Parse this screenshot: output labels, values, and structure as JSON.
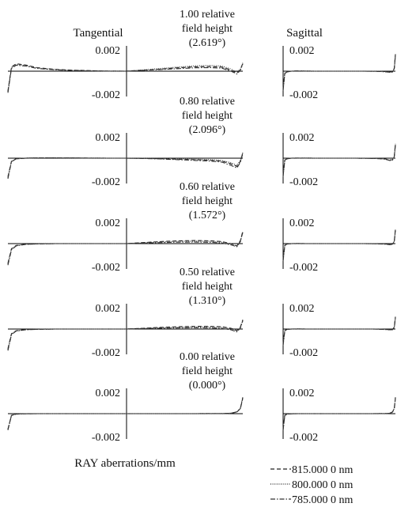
{
  "chart_data": {
    "type": "line",
    "column_headers": {
      "tangential": "Tangential",
      "sagittal": "Sagittal"
    },
    "xlabel": "RAY aberrations/mm",
    "ylim": [
      -0.002,
      0.002
    ],
    "series_legend": [
      {
        "name": "815.000 0 nm",
        "style": "dashed"
      },
      {
        "name": "800.000 0 nm",
        "style": "dotted"
      },
      {
        "name": "785.000 0 nm",
        "style": "dashdot"
      }
    ],
    "fields": [
      {
        "title": [
          "1.00 relative",
          "field height",
          "(2.619°)"
        ],
        "y_ticks": [
          "0.002",
          "-0.002"
        ],
        "x": [
          -1.0,
          -0.97,
          -0.93,
          -0.85,
          -0.75,
          -0.6,
          -0.45,
          -0.3,
          -0.15,
          0.0,
          0.15,
          0.3,
          0.45,
          0.6,
          0.72,
          0.82,
          0.9,
          0.95,
          0.98,
          1.0
        ],
        "tangential": [
          [
            -0.00195,
            0.0004,
            0.00072,
            0.0006,
            0.00035,
            0.00018,
            0.0001,
            5e-05,
            1e-05,
            0.0,
            0.0001,
            0.0002,
            0.00033,
            0.00043,
            0.00045,
            0.0004,
            0.0001,
            -0.00018,
            0.00015,
            0.00075
          ],
          [
            -0.002,
            0.00035,
            0.00065,
            0.00055,
            0.0003,
            0.00015,
            8e-05,
            4e-05,
            1e-05,
            0.0,
            0.00012,
            0.00026,
            0.0004,
            0.00052,
            0.00055,
            0.0005,
            0.0002,
            -0.0001,
            0.0002,
            0.0008
          ],
          [
            -0.0021,
            0.00028,
            0.00058,
            0.0005,
            0.00026,
            0.00013,
            7e-05,
            3e-05,
            1e-05,
            0.0,
            8e-05,
            0.00016,
            0.00025,
            0.00033,
            0.00035,
            0.0003,
            0.0,
            -0.00028,
            0.0001,
            0.0007
          ]
        ],
        "sagittal": [
          [
            -0.0017,
            -0.0002,
            -5e-05,
            0.0,
            2e-05,
            1e-05,
            0.0,
            0.0,
            0.0,
            0.0,
            0.0,
            0.0,
            0.0,
            -1e-05,
            -2e-05,
            -4e-05,
            -8e-05,
            -6e-05,
            0.0003,
            0.00165
          ],
          [
            -0.0018,
            -0.00022,
            -6e-05,
            0.0,
            2e-05,
            1e-05,
            0.0,
            0.0,
            0.0,
            0.0,
            0.0,
            0.0,
            0.0,
            -1e-05,
            -2e-05,
            -5e-05,
            -9e-05,
            -7e-05,
            0.00028,
            0.0016
          ],
          [
            -0.0019,
            -0.00024,
            -7e-05,
            0.0,
            2e-05,
            1e-05,
            0.0,
            0.0,
            0.0,
            0.0,
            0.0,
            0.0,
            0.0,
            -1e-05,
            -3e-05,
            -6e-05,
            -0.0001,
            -8e-05,
            0.00026,
            0.00155
          ]
        ]
      },
      {
        "title": [
          "0.80 relative",
          "field height",
          "(2.096°)"
        ],
        "y_ticks": [
          "0.002",
          "-0.002"
        ],
        "x": [
          -1.0,
          -0.97,
          -0.93,
          -0.85,
          -0.75,
          -0.6,
          -0.45,
          -0.3,
          -0.15,
          0.0,
          0.15,
          0.3,
          0.45,
          0.6,
          0.72,
          0.82,
          0.9,
          0.95,
          0.98,
          1.0
        ],
        "tangential": [
          [
            -0.0018,
            -0.0003,
            -5e-05,
            0.0,
            3e-05,
            3e-05,
            2e-05,
            1e-05,
            0.0,
            0.0,
            -2e-05,
            -5e-05,
            -0.0001,
            -0.00015,
            -0.0002,
            -0.00028,
            -0.00055,
            -0.0008,
            -0.0003,
            0.0005
          ],
          [
            -0.0019,
            -0.00032,
            -6e-05,
            0.0,
            3e-05,
            3e-05,
            2e-05,
            1e-05,
            0.0,
            0.0,
            -1e-05,
            -3e-05,
            -6e-05,
            -0.0001,
            -0.00014,
            -0.00022,
            -0.00045,
            -0.0007,
            -0.0002,
            0.00055
          ],
          [
            -0.002,
            -0.00034,
            -7e-05,
            0.0,
            3e-05,
            3e-05,
            2e-05,
            1e-05,
            0.0,
            0.0,
            -3e-05,
            -8e-05,
            -0.00015,
            -0.00022,
            -0.00028,
            -0.00038,
            -0.0007,
            -0.00095,
            -0.0004,
            0.00045
          ]
        ],
        "sagittal": [
          [
            -0.0016,
            -0.00018,
            -4e-05,
            0.0,
            1e-05,
            1e-05,
            0.0,
            0.0,
            0.0,
            0.0,
            0.0,
            0.0,
            -1e-05,
            -2e-05,
            -4e-05,
            -8e-05,
            -0.00018,
            -0.00015,
            0.0002,
            0.0014
          ],
          [
            -0.0017,
            -0.0002,
            -5e-05,
            0.0,
            1e-05,
            1e-05,
            0.0,
            0.0,
            0.0,
            0.0,
            0.0,
            0.0,
            -1e-05,
            -2e-05,
            -4e-05,
            -9e-05,
            -0.0002,
            -0.00016,
            0.00018,
            0.00135
          ],
          [
            -0.0018,
            -0.00022,
            -6e-05,
            0.0,
            1e-05,
            1e-05,
            0.0,
            0.0,
            0.0,
            0.0,
            0.0,
            0.0,
            -1e-05,
            -3e-05,
            -5e-05,
            -0.0001,
            -0.00022,
            -0.00018,
            0.00016,
            0.0013
          ]
        ]
      },
      {
        "title": [
          "0.60 relative",
          "field height",
          "(1.572°)"
        ],
        "y_ticks": [
          "0.002",
          "-0.002"
        ],
        "x": [
          -1.0,
          -0.97,
          -0.93,
          -0.85,
          -0.75,
          -0.6,
          -0.45,
          -0.3,
          -0.15,
          0.0,
          0.15,
          0.3,
          0.45,
          0.6,
          0.72,
          0.82,
          0.9,
          0.95,
          0.98,
          1.0
        ],
        "tangential": [
          [
            -0.0019,
            -0.0005,
            -0.00018,
            -6e-05,
            -2e-05,
            0.0,
            0.0,
            0.0,
            0.0,
            0.0,
            0.0001,
            0.0002,
            0.00027,
            0.0003,
            0.00028,
            0.0002,
            0.0,
            -0.00022,
            0.0003,
            0.0012
          ],
          [
            -0.002,
            -0.00055,
            -0.0002,
            -7e-05,
            -2e-05,
            0.0,
            0.0,
            0.0,
            0.0,
            0.0,
            8e-05,
            0.00016,
            0.00022,
            0.00024,
            0.00022,
            0.00015,
            -5e-05,
            -0.00025,
            0.00025,
            0.00115
          ],
          [
            -0.0021,
            -0.0006,
            -0.00022,
            -8e-05,
            -3e-05,
            0.0,
            0.0,
            0.0,
            0.0,
            0.0,
            5e-05,
            0.0001,
            0.00014,
            0.00015,
            0.00013,
            6e-05,
            -0.00012,
            -0.0003,
            0.0002,
            0.0011
          ]
        ],
        "sagittal": [
          [
            -0.0015,
            -0.00016,
            -3e-05,
            0.0,
            1e-05,
            0.0,
            0.0,
            0.0,
            0.0,
            0.0,
            0.0,
            0.0,
            0.0,
            -1e-05,
            -2e-05,
            -4e-05,
            -8e-05,
            -5e-05,
            0.00025,
            0.0014
          ],
          [
            -0.0016,
            -0.00018,
            -4e-05,
            0.0,
            1e-05,
            0.0,
            0.0,
            0.0,
            0.0,
            0.0,
            0.0,
            0.0,
            0.0,
            -1e-05,
            -2e-05,
            -5e-05,
            -9e-05,
            -6e-05,
            0.00023,
            0.00135
          ],
          [
            -0.0017,
            -0.0002,
            -5e-05,
            0.0,
            1e-05,
            0.0,
            0.0,
            0.0,
            0.0,
            0.0,
            0.0,
            0.0,
            0.0,
            -1e-05,
            -3e-05,
            -6e-05,
            -0.0001,
            -7e-05,
            0.00021,
            0.0013
          ]
        ]
      },
      {
        "title": [
          "0.50 relative",
          "field height",
          "(1.310°)"
        ],
        "y_ticks": [
          "0.002",
          "-0.002"
        ],
        "x": [
          -1.0,
          -0.97,
          -0.93,
          -0.85,
          -0.75,
          -0.6,
          -0.45,
          -0.3,
          -0.15,
          0.0,
          0.15,
          0.3,
          0.45,
          0.6,
          0.72,
          0.82,
          0.9,
          0.95,
          0.98,
          1.0
        ],
        "tangential": [
          [
            -0.0019,
            -0.00045,
            -0.00016,
            -5e-05,
            -2e-05,
            0.0,
            0.0,
            0.0,
            0.0,
            0.0,
            8e-05,
            0.00016,
            0.00022,
            0.00026,
            0.00026,
            0.00022,
            8e-05,
            -0.00015,
            0.0002,
            0.0009
          ],
          [
            -0.002,
            -0.0005,
            -0.00018,
            -6e-05,
            -2e-05,
            0.0,
            0.0,
            0.0,
            0.0,
            0.0,
            6e-05,
            0.00012,
            0.00017,
            0.0002,
            0.0002,
            0.00016,
            2e-05,
            -0.0002,
            0.00015,
            0.00085
          ],
          [
            -0.0021,
            -0.00055,
            -0.0002,
            -7e-05,
            -3e-05,
            0.0,
            0.0,
            0.0,
            0.0,
            0.0,
            4e-05,
            8e-05,
            0.00011,
            0.00012,
            0.00011,
            6e-05,
            -8e-05,
            -0.00028,
            0.0001,
            0.0008
          ]
        ],
        "sagittal": [
          [
            -0.0014,
            -0.00014,
            -3e-05,
            0.0,
            1e-05,
            0.0,
            0.0,
            0.0,
            0.0,
            0.0,
            0.0,
            0.0,
            0.0,
            0.0,
            -1e-05,
            -3e-05,
            -6e-05,
            -4e-05,
            0.0002,
            0.0012
          ],
          [
            -0.0015,
            -0.00016,
            -4e-05,
            0.0,
            1e-05,
            0.0,
            0.0,
            0.0,
            0.0,
            0.0,
            0.0,
            0.0,
            0.0,
            0.0,
            -2e-05,
            -4e-05,
            -7e-05,
            -5e-05,
            0.00018,
            0.00115
          ],
          [
            -0.0016,
            -0.00018,
            -5e-05,
            0.0,
            1e-05,
            0.0,
            0.0,
            0.0,
            0.0,
            0.0,
            0.0,
            0.0,
            0.0,
            0.0,
            -2e-05,
            -5e-05,
            -8e-05,
            -6e-05,
            0.00016,
            0.0011
          ]
        ]
      },
      {
        "title": [
          "0.00 relative",
          "field height",
          "(0.000°)"
        ],
        "y_ticks": [
          "0.002",
          "-0.002"
        ],
        "x": [
          -1.0,
          -0.97,
          -0.93,
          -0.85,
          -0.75,
          -0.6,
          -0.45,
          -0.3,
          -0.15,
          0.0,
          0.15,
          0.3,
          0.45,
          0.6,
          0.72,
          0.82,
          0.9,
          0.95,
          0.98,
          1.0
        ],
        "tangential": [
          [
            -0.0015,
            -0.00016,
            -4e-05,
            -1e-05,
            0.0,
            0.0,
            0.0,
            0.0,
            0.0,
            0.0,
            0.0,
            0.0,
            0.0,
            0.0,
            1e-05,
            1e-05,
            4e-05,
            0.00016,
            0.0005,
            0.0015
          ],
          [
            -0.00155,
            -0.00017,
            -4e-05,
            -1e-05,
            0.0,
            0.0,
            0.0,
            0.0,
            0.0,
            0.0,
            0.0,
            0.0,
            0.0,
            0.0,
            1e-05,
            1e-05,
            4e-05,
            0.00017,
            0.00052,
            0.00155
          ],
          [
            -0.0016,
            -0.00018,
            -5e-05,
            -1e-05,
            0.0,
            0.0,
            0.0,
            0.0,
            0.0,
            0.0,
            0.0,
            0.0,
            0.0,
            0.0,
            1e-05,
            1e-05,
            5e-05,
            0.00018,
            0.00054,
            0.0016
          ]
        ],
        "sagittal": [
          [
            -0.0015,
            -0.00016,
            -4e-05,
            -1e-05,
            0.0,
            0.0,
            0.0,
            0.0,
            0.0,
            0.0,
            0.0,
            0.0,
            0.0,
            0.0,
            1e-05,
            1e-05,
            4e-05,
            0.00016,
            0.0005,
            0.0015
          ],
          [
            -0.00155,
            -0.00017,
            -4e-05,
            -1e-05,
            0.0,
            0.0,
            0.0,
            0.0,
            0.0,
            0.0,
            0.0,
            0.0,
            0.0,
            0.0,
            1e-05,
            1e-05,
            4e-05,
            0.00017,
            0.00052,
            0.00155
          ],
          [
            -0.0016,
            -0.00018,
            -5e-05,
            -1e-05,
            0.0,
            0.0,
            0.0,
            0.0,
            0.0,
            0.0,
            0.0,
            0.0,
            0.0,
            0.0,
            1e-05,
            1e-05,
            5e-05,
            0.00018,
            0.00054,
            0.0016
          ]
        ]
      }
    ]
  }
}
